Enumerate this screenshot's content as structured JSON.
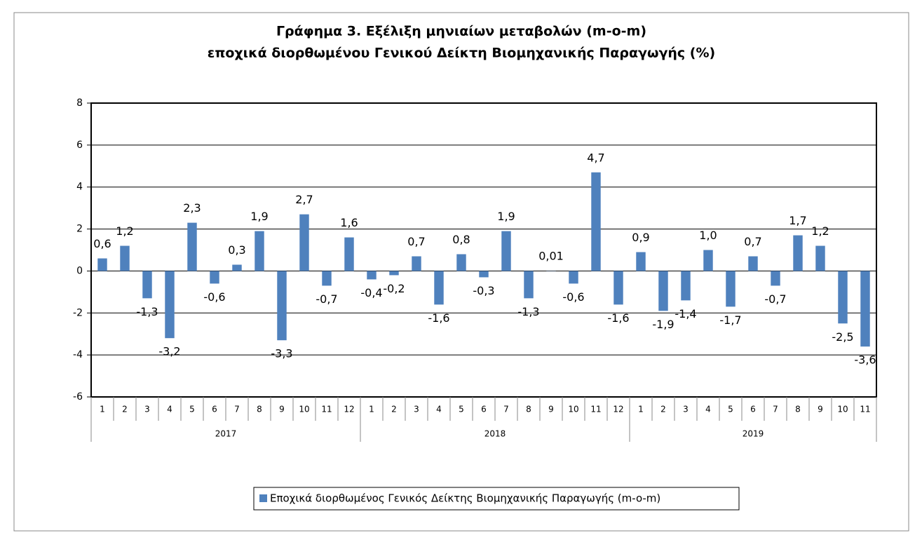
{
  "chart_data": {
    "type": "bar",
    "title": [
      "Γράφημα 3. Εξέλιξη μηνιαίων μεταβολών (m-o-m)",
      "εποχικά διορθωμένου Γενικού Δείκτη Βιομηχανικής Παραγωγής (%)"
    ],
    "categories": [
      "1",
      "2",
      "3",
      "4",
      "5",
      "6",
      "7",
      "8",
      "9",
      "10",
      "11",
      "12",
      "1",
      "2",
      "3",
      "4",
      "5",
      "6",
      "7",
      "8",
      "9",
      "10",
      "11",
      "12",
      "1",
      "2",
      "3",
      "4",
      "5",
      "6",
      "7",
      "8",
      "9",
      "10",
      "11"
    ],
    "groups": [
      "2017",
      "2018",
      "2019"
    ],
    "series": [
      {
        "name": "Εποχικά διορθωμένος Γενικός Δείκτης Βιομηχανικής Παραγωγής (m-o-m)",
        "color": "#4f81bd",
        "values": [
          0.6,
          1.2,
          -1.3,
          -3.2,
          2.3,
          -0.6,
          0.3,
          1.9,
          -3.3,
          2.7,
          -0.7,
          1.6,
          -0.4,
          -0.2,
          0.7,
          -1.6,
          0.8,
          -0.3,
          1.9,
          -1.3,
          0.01,
          -0.6,
          4.7,
          -1.6,
          0.9,
          -1.9,
          -1.4,
          1.0,
          -1.7,
          0.7,
          -0.7,
          1.7,
          1.2,
          -2.5,
          -3.6
        ],
        "value_labels": [
          "0,6",
          "1,2",
          "-1,3",
          "-3,2",
          "2,3",
          "-0,6",
          "0,3",
          "1,9",
          "-3,3",
          "2,7",
          "-0,7",
          "1,6",
          "-0,4",
          "-0,2",
          "0,7",
          "-1,6",
          "0,8",
          "-0,3",
          "1,9",
          "-1,3",
          "0,01",
          "-0,6",
          "4,7",
          "-1,6",
          "0,9",
          "-1,9",
          "-1,4",
          "1,0",
          "-1,7",
          "0,7",
          "-0,7",
          "1,7",
          "1,2",
          "-2,5",
          "-3,6"
        ]
      }
    ],
    "ylim": [
      -6,
      8
    ],
    "yticks": [
      -6,
      -4,
      -2,
      0,
      2,
      4,
      6,
      8
    ],
    "grid": true,
    "legend": "bottom"
  }
}
